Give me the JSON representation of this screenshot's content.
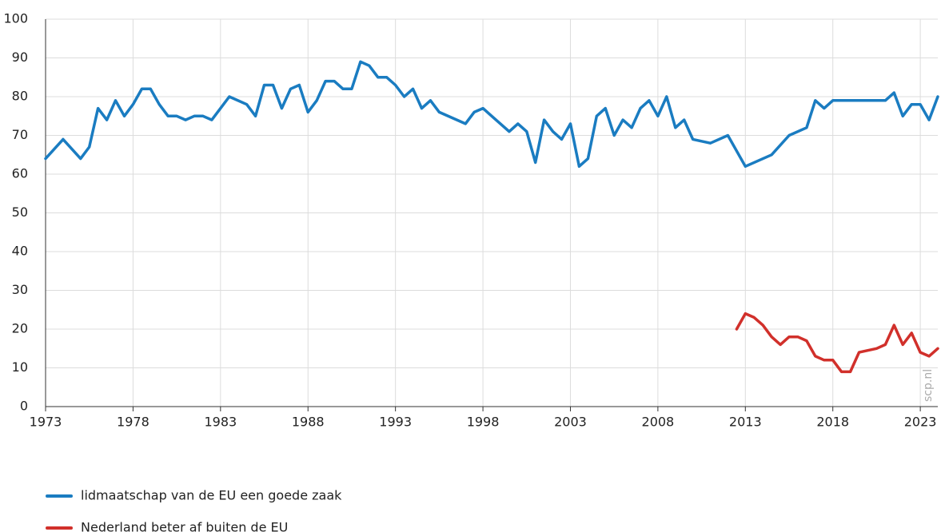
{
  "chart_data": {
    "type": "line",
    "xlim": [
      1973,
      2024
    ],
    "xticks": [
      1973,
      1978,
      1983,
      1988,
      1993,
      1998,
      2003,
      2008,
      2013,
      2018,
      2023
    ],
    "ylim": [
      0,
      100
    ],
    "yticks": [
      0,
      10,
      20,
      30,
      40,
      50,
      60,
      70,
      80,
      90,
      100
    ],
    "grid": true,
    "legend": "bottom",
    "watermark": "scp.nl",
    "series": [
      {
        "name": "lidmaatschap van de EU een goede zaak",
        "color": "#1a7cc1",
        "x": [
          1973,
          1974,
          1975,
          1975.5,
          1976,
          1976.5,
          1977,
          1977.5,
          1978,
          1978.5,
          1979,
          1979.5,
          1980,
          1980.5,
          1981,
          1981.5,
          1982,
          1982.5,
          1983.5,
          1984.5,
          1985,
          1985.5,
          1986,
          1986.5,
          1987,
          1987.5,
          1988,
          1988.5,
          1989,
          1989.5,
          1990,
          1990.5,
          1991,
          1991.5,
          1992,
          1992.5,
          1993,
          1993.5,
          1994,
          1994.5,
          1995,
          1995.5,
          1997,
          1997.5,
          1998,
          1998.5,
          1999,
          1999.5,
          2000,
          2000.5,
          2001,
          2001.5,
          2002,
          2002.5,
          2003,
          2003.5,
          2004,
          2004.5,
          2005,
          2005.5,
          2006,
          2006.5,
          2007,
          2007.5,
          2008,
          2008.5,
          2009,
          2009.5,
          2010,
          2011,
          2012,
          2013,
          2014.5,
          2015.5,
          2016.5,
          2017,
          2017.5,
          2018,
          2021,
          2021.5,
          2022,
          2022.5,
          2023,
          2023.5,
          2024
        ],
        "values": [
          64,
          69,
          64,
          67,
          77,
          74,
          79,
          75,
          78,
          82,
          82,
          78,
          75,
          75,
          74,
          75,
          75,
          74,
          80,
          78,
          75,
          83,
          83,
          77,
          82,
          83,
          76,
          79,
          84,
          84,
          82,
          82,
          89,
          88,
          85,
          85,
          83,
          80,
          82,
          77,
          79,
          76,
          73,
          76,
          77,
          75,
          73,
          71,
          73,
          71,
          63,
          74,
          71,
          69,
          73,
          62,
          64,
          75,
          77,
          70,
          74,
          72,
          77,
          79,
          75,
          80,
          72,
          74,
          69,
          68,
          70,
          62,
          65,
          70,
          72,
          79,
          77,
          79,
          79,
          81,
          75,
          78,
          78,
          74,
          80
        ]
      },
      {
        "name": "Nederland beter af buiten de EU",
        "color": "#d1302b",
        "x": [
          2012.5,
          2013,
          2013.5,
          2014,
          2014.5,
          2015,
          2015.5,
          2016,
          2016.5,
          2017,
          2017.5,
          2018,
          2018.5,
          2019,
          2019.5,
          2020.5,
          2021,
          2021.5,
          2022,
          2022.5,
          2023,
          2023.5,
          2024
        ],
        "values": [
          20,
          24,
          23,
          21,
          18,
          16,
          18,
          18,
          17,
          13,
          12,
          12,
          9,
          9,
          14,
          15,
          16,
          21,
          16,
          19,
          14,
          13,
          15
        ]
      }
    ]
  }
}
